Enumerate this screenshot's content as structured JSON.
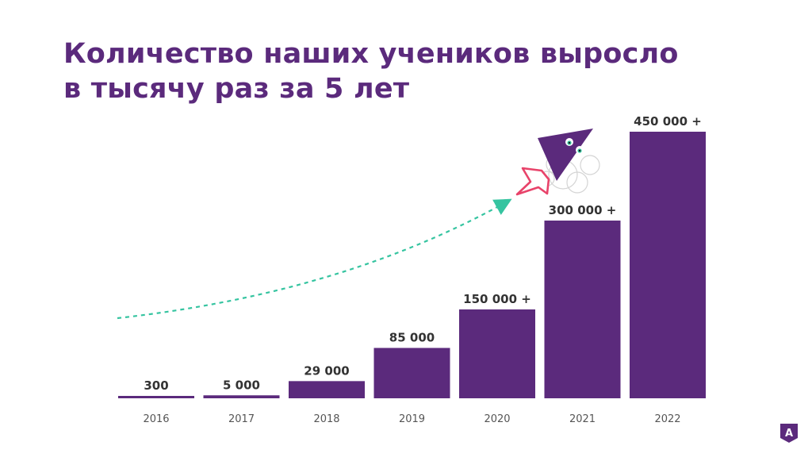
{
  "title": {
    "line1": "Количество наших учеников выросло",
    "line2": "в тысячу раз за 5 лет"
  },
  "colors": {
    "bar": "#5b2a7c",
    "title": "#5b2a7c",
    "trend_arrow": "#35c4a0",
    "rocket_flame": "#e8436a"
  },
  "chart_data": {
    "type": "bar",
    "title": "Количество наших учеников выросло в тысячу раз за 5 лет",
    "xlabel": "",
    "ylabel": "",
    "categories": [
      "2016",
      "2017",
      "2018",
      "2019",
      "2020",
      "2021",
      "2022"
    ],
    "values": [
      300,
      5000,
      29000,
      85000,
      150000,
      300000,
      450000
    ],
    "value_labels": [
      "300",
      "5 000",
      "29 000",
      "85 000",
      "150 000 +",
      "300 000 +",
      "450 000 +"
    ],
    "ylim": [
      0,
      450000
    ],
    "grid": false,
    "legend": "none"
  },
  "decor": {
    "mascot_icon": "triangle-mascot-icon",
    "logo_icon": "brand-logo-icon",
    "logo_letter": "А"
  }
}
